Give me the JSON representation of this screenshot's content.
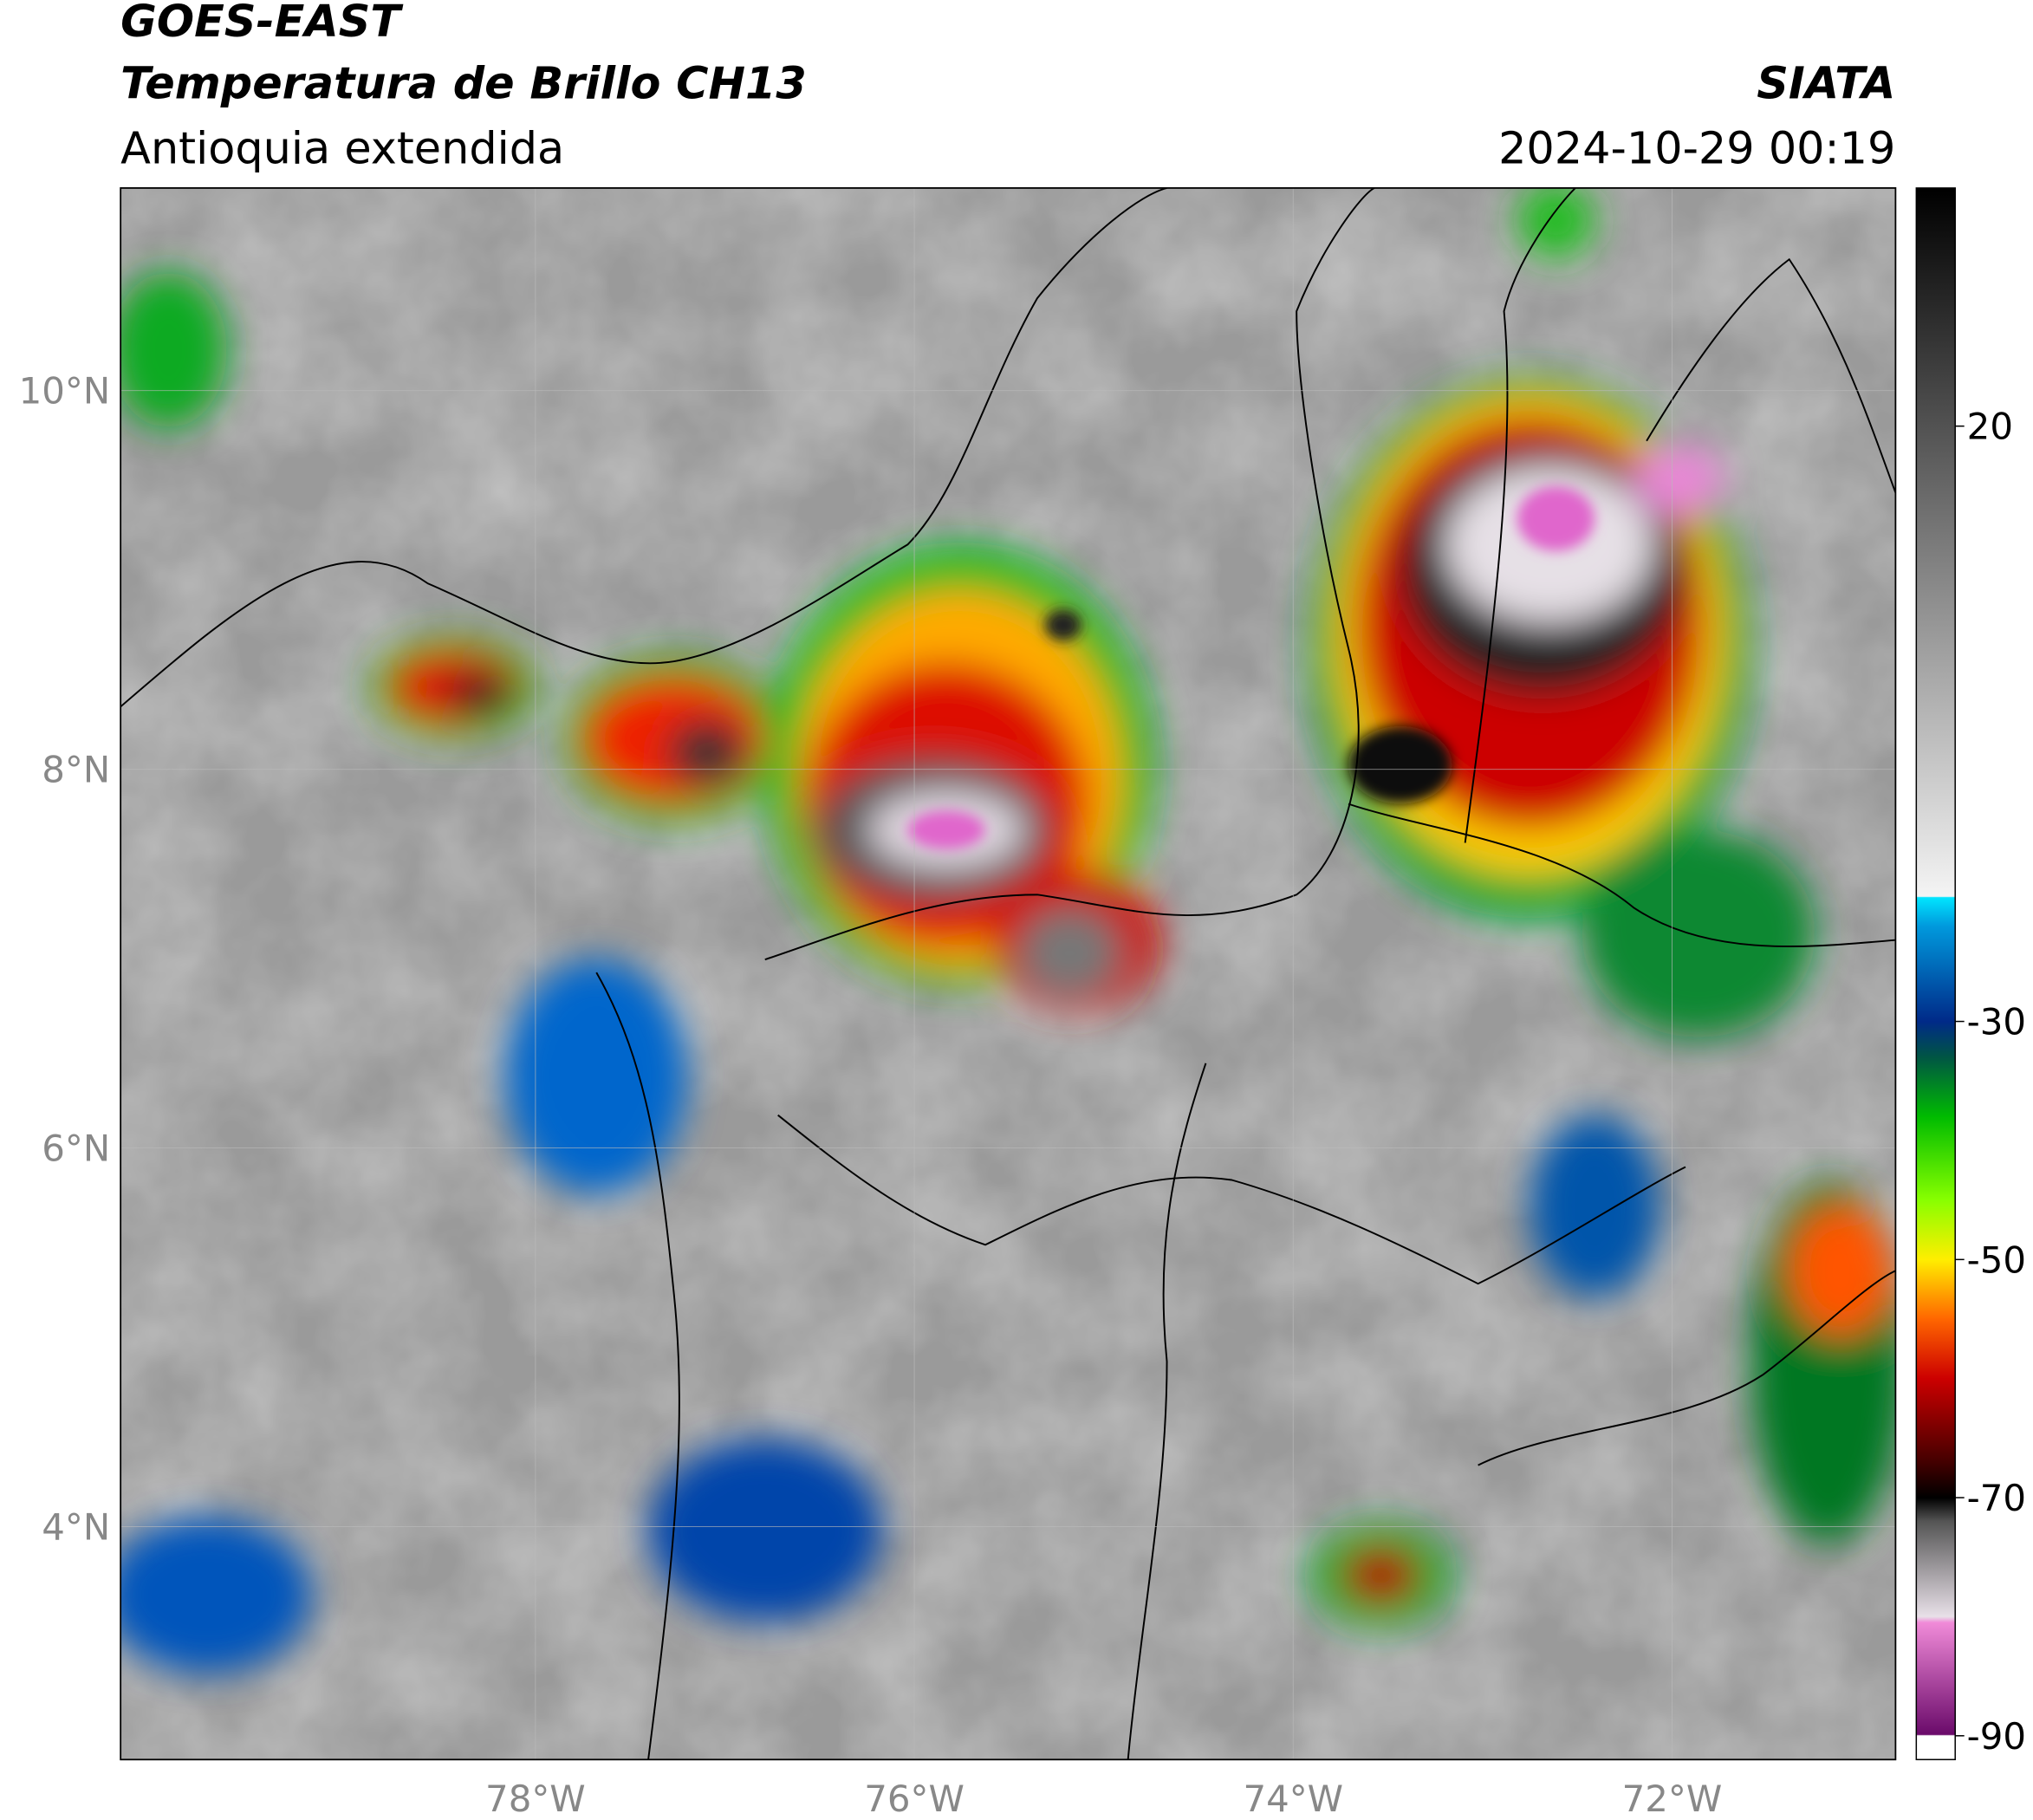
{
  "header": {
    "title": "GOES-EAST",
    "subtitle": "Temperatura de Brillo CH13",
    "region": "Antioquia extendida",
    "source": "SIATA",
    "datetime": "2024-10-29 00:19"
  },
  "map": {
    "lat_lim": [
      2.77,
      11.07
    ],
    "lon_lim": [
      -80.19,
      -70.82
    ],
    "lat_ticks": [
      {
        "value": 10,
        "label": "10°N"
      },
      {
        "value": 8,
        "label": "8°N"
      },
      {
        "value": 6,
        "label": "6°N"
      },
      {
        "value": 4,
        "label": "4°N"
      }
    ],
    "lon_ticks": [
      {
        "value": -78,
        "label": "78°W"
      },
      {
        "value": -76,
        "label": "76°W"
      },
      {
        "value": -74,
        "label": "74°W"
      },
      {
        "value": -72,
        "label": "72°W"
      }
    ]
  },
  "colorbar": {
    "lim": [
      -92,
      40
    ],
    "ticks": [
      20,
      -30,
      -50,
      -70,
      -90
    ],
    "colors": [
      {
        "value": -92,
        "color": "#ffffff"
      },
      {
        "value": -90,
        "color": "#ffffff"
      },
      {
        "value": -89.9,
        "color": "#6a0a6a"
      },
      {
        "value": -80.5,
        "color": "#f08ad8"
      },
      {
        "value": -80,
        "color": "#e8e0e8"
      },
      {
        "value": -72,
        "color": "#555555"
      },
      {
        "value": -70,
        "color": "#000000"
      },
      {
        "value": -67,
        "color": "#440000"
      },
      {
        "value": -60,
        "color": "#cc0000"
      },
      {
        "value": -55,
        "color": "#ff6600"
      },
      {
        "value": -50,
        "color": "#ffee00"
      },
      {
        "value": -45,
        "color": "#88ff00"
      },
      {
        "value": -38,
        "color": "#00bb00"
      },
      {
        "value": -33,
        "color": "#005544"
      },
      {
        "value": -30,
        "color": "#002a88"
      },
      {
        "value": -22,
        "color": "#0099dd"
      },
      {
        "value": -19.6,
        "color": "#00e5ff"
      },
      {
        "value": -19.5,
        "color": "#f4f4f4"
      },
      {
        "value": 40,
        "color": "#000000"
      }
    ]
  }
}
